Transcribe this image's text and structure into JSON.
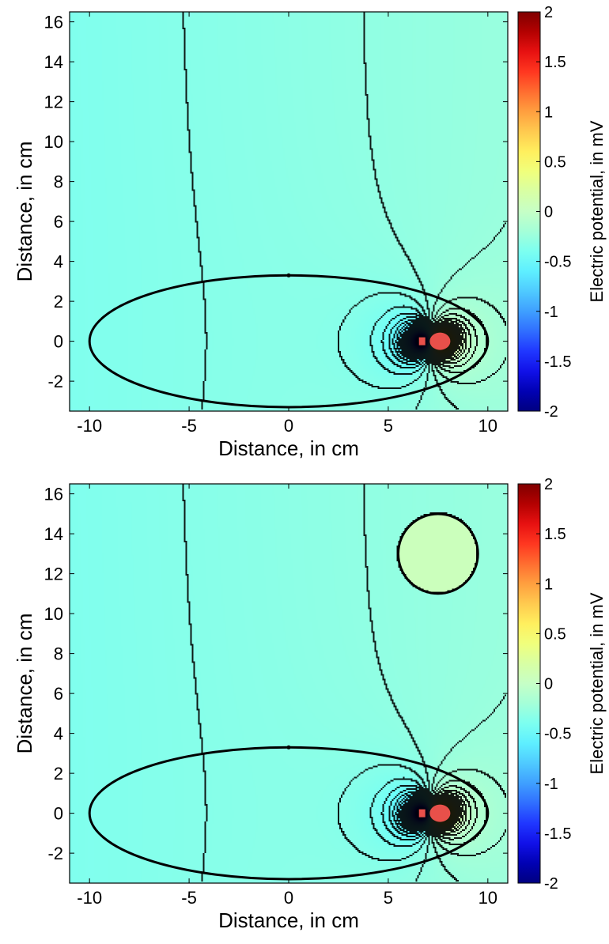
{
  "chart_data": [
    {
      "type": "contour",
      "xlabel": "Distance, in cm",
      "ylabel": "Distance, in cm",
      "colorbar_label": "Electric potential, in mV",
      "xlim": [
        -11,
        11
      ],
      "ylim": [
        -3.5,
        16.5
      ],
      "xticks": [
        -10,
        -5,
        0,
        5,
        10
      ],
      "yticks": [
        -2,
        0,
        2,
        4,
        6,
        8,
        10,
        12,
        14,
        16
      ],
      "color_limits": [
        -2,
        2
      ],
      "colorbar_ticks": [
        2,
        1.5,
        1,
        0.5,
        0,
        -0.5,
        -1,
        -1.5,
        -2
      ],
      "colormap": "jet",
      "body": {
        "shape": "ellipse",
        "center": [
          0,
          0
        ],
        "semi_axes": [
          10,
          3.3
        ]
      },
      "dipole": {
        "negative_pole": [
          6.7,
          0
        ],
        "positive_pole": [
          7.6,
          0
        ]
      },
      "inclusion": null
    },
    {
      "type": "contour",
      "xlabel": "Distance, in cm",
      "ylabel": "Distance, in cm",
      "colorbar_label": "Electric potential, in mV",
      "xlim": [
        -11,
        11
      ],
      "ylim": [
        -3.5,
        16.5
      ],
      "xticks": [
        -10,
        -5,
        0,
        5,
        10
      ],
      "yticks": [
        -2,
        0,
        2,
        4,
        6,
        8,
        10,
        12,
        14,
        16
      ],
      "color_limits": [
        -2,
        2
      ],
      "colorbar_ticks": [
        2,
        1.5,
        1,
        0.5,
        0,
        -0.5,
        -1,
        -1.5,
        -2
      ],
      "colormap": "jet",
      "body": {
        "shape": "ellipse",
        "center": [
          0,
          0
        ],
        "semi_axes": [
          10,
          3.3
        ]
      },
      "dipole": {
        "negative_pole": [
          6.7,
          0
        ],
        "positive_pole": [
          7.6,
          0
        ]
      },
      "inclusion": {
        "shape": "circle",
        "center": [
          7.5,
          13
        ],
        "radius": 2
      }
    }
  ]
}
